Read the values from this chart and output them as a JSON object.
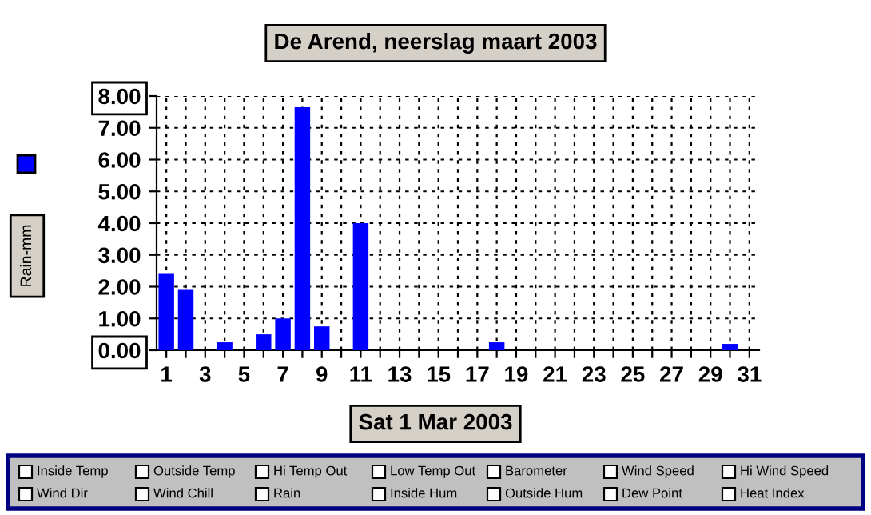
{
  "chart_data": {
    "type": "bar",
    "title": "De Arend, neerslag maart 2003",
    "xlabel": "Sat 1 Mar 2003",
    "ylabel": "Rain-mm",
    "categories": [
      "1",
      null,
      "3",
      null,
      "5",
      null,
      "7",
      null,
      "9",
      null,
      "11",
      null,
      "13",
      null,
      "15",
      null,
      "17",
      null,
      "19",
      null,
      "21",
      null,
      "23",
      null,
      "25",
      null,
      "27",
      null,
      "29",
      null,
      "31"
    ],
    "series": [
      {
        "color": "#0000ff",
        "values": [
          2.4,
          1.9,
          0,
          0.25,
          0,
          0.5,
          1.0,
          7.65,
          0.75,
          0,
          4.0,
          0,
          0,
          0,
          0,
          0,
          0,
          0.25,
          0,
          0,
          0,
          0,
          0,
          0,
          0,
          0,
          0,
          0,
          0,
          0.2,
          0
        ]
      }
    ],
    "ylim": [
      0,
      8
    ],
    "yticks": [
      {
        "value": 0,
        "label": "0.00"
      },
      {
        "value": 1,
        "label": "1.00"
      },
      {
        "value": 2,
        "label": "2.00"
      },
      {
        "value": 3,
        "label": "3.00"
      },
      {
        "value": 4,
        "label": "4.00"
      },
      {
        "value": 5,
        "label": "5.00"
      },
      {
        "value": 6,
        "label": "6.00"
      },
      {
        "value": 7,
        "label": "7.00"
      },
      {
        "value": 8,
        "label": "8.00"
      }
    ],
    "grid": true,
    "annotations": [
      "Inside Temp",
      "Outside Temp",
      "Hi Temp Out",
      "Low Temp Out",
      "Barometer",
      "Wind Speed",
      "Hi Wind Speed",
      "Wind Dir",
      "Wind Chill",
      "Rain",
      "Inside Hum",
      "Outside Hum",
      "Dew Point",
      "Heat Index"
    ]
  }
}
